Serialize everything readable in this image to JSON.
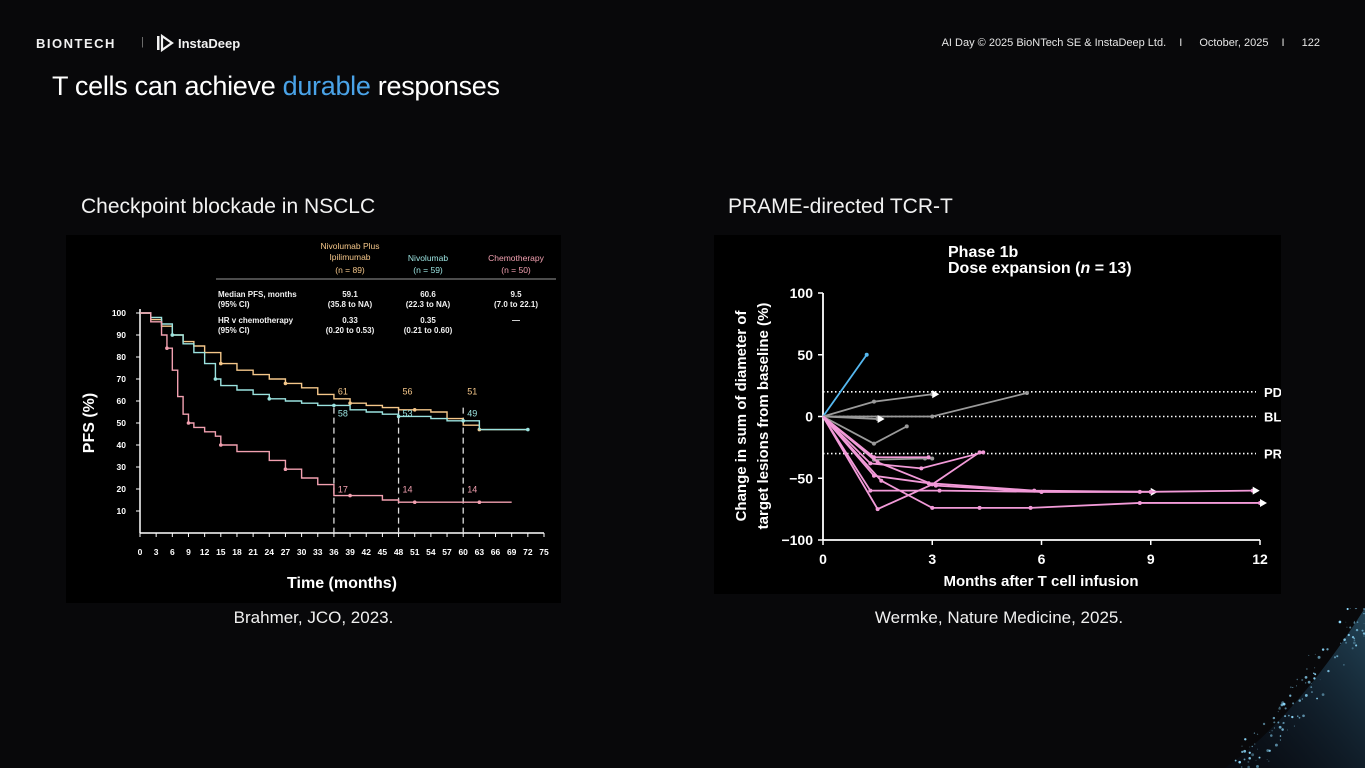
{
  "header": {
    "brand_biontech": "BIONTECH",
    "brand_separator": "|",
    "brand_instadeep": "InstaDeep",
    "event": "AI Day © 2025  BioNTech SE & InstaDeep Ltd.",
    "sep1": "I",
    "date": "October, 2025",
    "sep2": "I",
    "page": "122"
  },
  "title": {
    "part1": "T cells can achieve ",
    "highlight": "durable",
    "part2": " responses"
  },
  "left": {
    "subtitle": "Checkpoint blockade in NSCLC",
    "citation": "Brahmer, JCO, 2023."
  },
  "right": {
    "subtitle": "PRAME-directed TCR-T",
    "citation": "Wermke, Nature Medicine, 2025."
  },
  "colors": {
    "accent": "#4aa3e8",
    "nivo_ipi": "#f5c78a",
    "nivo": "#9be3e0",
    "chemo": "#f2a0b0",
    "pink": "#f29ad8",
    "blue_line": "#55b8f0",
    "gray_line": "#9a9a9a"
  },
  "chart_data": [
    {
      "type": "line",
      "title": "Checkpoint blockade in NSCLC",
      "xlabel": "Time (months)",
      "ylabel": "PFS (%)",
      "xlim": [
        0,
        75
      ],
      "ylim": [
        0,
        100
      ],
      "xticks": [
        0,
        3,
        6,
        9,
        12,
        15,
        18,
        21,
        24,
        27,
        30,
        33,
        36,
        39,
        42,
        45,
        48,
        51,
        54,
        57,
        60,
        63,
        66,
        69,
        72,
        75
      ],
      "yticks": [
        10,
        20,
        30,
        40,
        50,
        60,
        70,
        80,
        90,
        100
      ],
      "table": {
        "columns": [
          {
            "name": "Nivolumab Plus Ipilimumab",
            "n": "(n = 89)"
          },
          {
            "name": "Nivolumab",
            "n": "(n = 59)"
          },
          {
            "name": "Chemotherapy",
            "n": "(n = 50)"
          }
        ],
        "rows": [
          {
            "label1": "Median PFS, months",
            "label2": "(95% CI)",
            "values": [
              [
                "59.1",
                "(35.8 to NA)"
              ],
              [
                "60.6",
                "(22.3 to NA)"
              ],
              [
                "9.5",
                "(7.0 to 22.1)"
              ]
            ]
          },
          {
            "label1": "HR v chemotherapy",
            "label2": "(95% CI)",
            "values": [
              [
                "0.33",
                "(0.20 to 0.53)"
              ],
              [
                "0.35",
                "(0.21 to 0.60)"
              ],
              [
                "—",
                ""
              ]
            ]
          }
        ]
      },
      "series": [
        {
          "name": "Nivolumab Plus Ipilimumab",
          "color_key": "nivo_ipi",
          "x": [
            0,
            2,
            4,
            6,
            8,
            10,
            12,
            15,
            18,
            21,
            24,
            27,
            30,
            33,
            36,
            39,
            42,
            45,
            48,
            51,
            54,
            57,
            60,
            63,
            66,
            69,
            72
          ],
          "y": [
            100,
            97,
            94,
            90,
            87,
            85,
            82,
            77,
            74,
            72,
            70,
            68,
            66,
            63,
            61,
            59,
            58,
            57,
            56,
            56,
            55,
            52,
            49,
            47,
            47,
            47,
            47
          ]
        },
        {
          "name": "Nivolumab",
          "color_key": "nivo",
          "x": [
            0,
            2,
            4,
            6,
            8,
            10,
            12,
            14,
            15,
            18,
            21,
            24,
            27,
            30,
            33,
            36,
            39,
            42,
            45,
            48,
            51,
            54,
            57,
            60,
            63,
            66,
            69,
            72
          ],
          "y": [
            100,
            98,
            95,
            90,
            86,
            82,
            77,
            70,
            67,
            65,
            63,
            61,
            60,
            59,
            58,
            58,
            56,
            55,
            54,
            53,
            53,
            52,
            51,
            51,
            47,
            47,
            47,
            47
          ]
        },
        {
          "name": "Chemotherapy",
          "color_key": "chemo",
          "x": [
            0,
            2,
            4,
            5,
            6,
            7,
            8,
            9,
            10,
            12,
            14,
            15,
            18,
            21,
            24,
            27,
            30,
            33,
            36,
            39,
            42,
            45,
            48,
            51,
            54,
            57,
            60,
            63,
            66,
            69
          ],
          "y": [
            100,
            96,
            90,
            84,
            74,
            62,
            54,
            50,
            48,
            46,
            44,
            40,
            37,
            37,
            33,
            29,
            25,
            22,
            17,
            17,
            17,
            15,
            14,
            14,
            14,
            14,
            14,
            14,
            14,
            14
          ]
        }
      ],
      "annotations": [
        {
          "x": 36,
          "label_top": "61",
          "label_bottom": "58",
          "chemo": "17"
        },
        {
          "x": 48,
          "label_top": "56",
          "label_bottom": "53",
          "chemo": "14"
        },
        {
          "x": 60,
          "label_top": "51",
          "label_bottom": "49",
          "chemo": "14"
        }
      ]
    },
    {
      "type": "line",
      "title": "Phase 1b",
      "subtitle_prefix": "Dose expansion (",
      "subtitle_n": "n",
      "subtitle_suffix": " = 13)",
      "xlabel": "Months after T cell infusion",
      "ylabel_line1": "Change in sum of diameter of",
      "ylabel_line2": "target lesions from baseline (%)",
      "xlim": [
        0,
        12
      ],
      "ylim": [
        -100,
        100
      ],
      "xticks": [
        0,
        3,
        6,
        9,
        12
      ],
      "yticks": [
        100,
        50,
        0,
        -50,
        -100
      ],
      "reference_lines": [
        {
          "label": "PD",
          "y": 20
        },
        {
          "label": "BL",
          "y": 0
        },
        {
          "label": "PR",
          "y": -30
        }
      ],
      "series": [
        {
          "color_key": "blue_line",
          "x": [
            0,
            1.2
          ],
          "y": [
            0,
            50
          ]
        },
        {
          "color_key": "gray_line",
          "x": [
            0,
            1.4,
            3.0
          ],
          "y": [
            0,
            12,
            18
          ],
          "arrow": true
        },
        {
          "color_key": "gray_line",
          "x": [
            0,
            3.0,
            5.6
          ],
          "y": [
            0,
            0,
            19
          ]
        },
        {
          "color_key": "gray_line",
          "x": [
            0,
            1.5
          ],
          "y": [
            0,
            -2
          ],
          "arrow": true
        },
        {
          "color_key": "gray_line",
          "x": [
            0,
            1.4,
            2.3
          ],
          "y": [
            0,
            -22,
            -8
          ]
        },
        {
          "color_key": "gray_line",
          "x": [
            0,
            1.4,
            2.8,
            3.0
          ],
          "y": [
            0,
            -35,
            -34,
            -34
          ]
        },
        {
          "color_key": "pink",
          "x": [
            0,
            1.4,
            2.9
          ],
          "y": [
            0,
            -33,
            -33
          ]
        },
        {
          "color_key": "pink",
          "x": [
            0,
            1.3,
            2.7,
            4.4
          ],
          "y": [
            0,
            -38,
            -42,
            -29
          ]
        },
        {
          "color_key": "pink",
          "x": [
            0,
            1.5,
            3.0,
            4.3
          ],
          "y": [
            0,
            -75,
            -55,
            -29
          ]
        },
        {
          "color_key": "pink",
          "x": [
            0,
            1.4,
            2.9,
            5.8,
            8.7
          ],
          "y": [
            0,
            -48,
            -54,
            -60,
            -61
          ]
        },
        {
          "color_key": "pink",
          "x": [
            0,
            1.5,
            3.1,
            6.0,
            9.0
          ],
          "y": [
            0,
            -37,
            -56,
            -61,
            -61
          ],
          "arrow": true
        },
        {
          "color_key": "pink",
          "x": [
            0,
            1.3,
            3.2,
            6.0,
            9.0,
            11.8
          ],
          "y": [
            0,
            -60,
            -60,
            -61,
            -61,
            -60
          ],
          "arrow": true
        },
        {
          "color_key": "pink",
          "x": [
            0,
            1.6,
            3.0,
            4.3,
            5.7,
            8.7,
            12.0
          ],
          "y": [
            0,
            -52,
            -74,
            -74,
            -74,
            -70,
            -70
          ],
          "arrow": true
        }
      ]
    }
  ]
}
